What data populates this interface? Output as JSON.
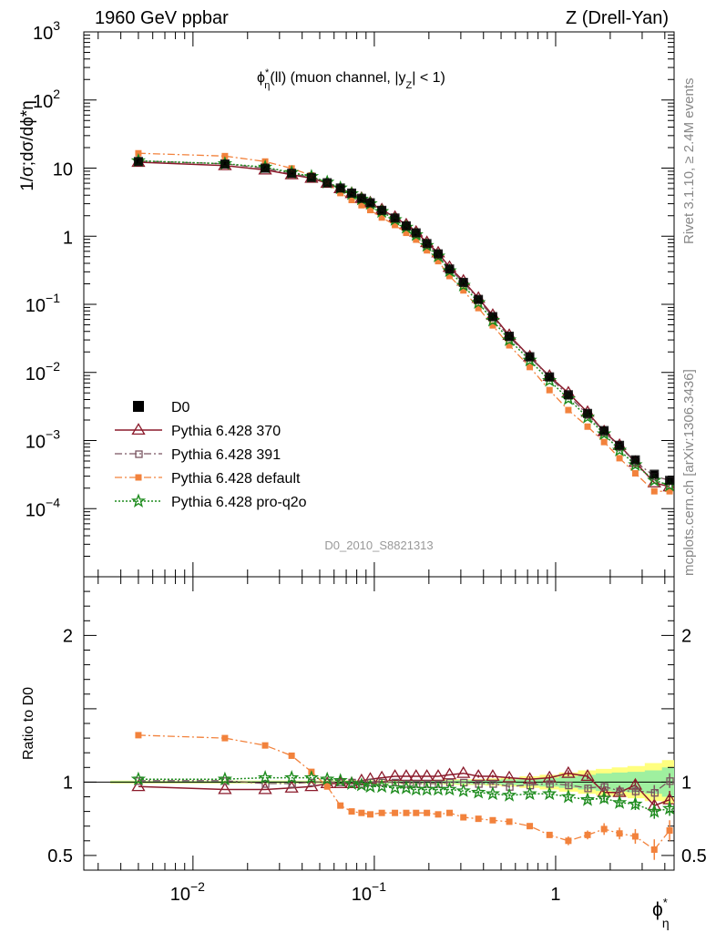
{
  "header": {
    "left": "1960 GeV ppbar",
    "right": "Z (Drell-Yan)",
    "rivet": "Rivet 3.1.10, ≥ 2.4M events",
    "mcplots": "mcplots.cern.ch [arXiv:1306.3436]",
    "analysis_id": "D0_2010_S8821313"
  },
  "colors": {
    "data": "#000000",
    "p370": "#8b1a2b",
    "p391": "#7a5560",
    "pdefault": "#f2823c",
    "pq2o": "#1e8c1e",
    "band_inner": "#9ff09f",
    "band_outer": "#ffff7f"
  },
  "chart_data": [
    {
      "type": "line",
      "title_parts": [
        "ϕ",
        "*",
        "η",
        "(ll) (muon channel, |y",
        "Z",
        "| < 1)"
      ],
      "ylabel": "1/σ;dσ/dϕ*η",
      "x_scale": "log",
      "y_scale": "log",
      "xlim": [
        0.0025,
        4.5
      ],
      "ylim": [
        1e-05,
        1000
      ],
      "y_ticks": [
        {
          "v": 0.0001,
          "mant": "10",
          "exp": "−4"
        },
        {
          "v": 0.001,
          "mant": "10",
          "exp": "−3"
        },
        {
          "v": 0.01,
          "mant": "10",
          "exp": "−2"
        },
        {
          "v": 0.1,
          "mant": "10",
          "exp": "−1"
        },
        {
          "v": 1,
          "mant": "1",
          "exp": ""
        },
        {
          "v": 10,
          "mant": "10",
          "exp": ""
        },
        {
          "v": 100,
          "mant": "10",
          "exp": "2"
        },
        {
          "v": 1000,
          "mant": "10",
          "exp": "3"
        }
      ],
      "legend_position": "lower-left",
      "x": [
        0.005,
        0.015,
        0.025,
        0.035,
        0.045,
        0.055,
        0.065,
        0.075,
        0.085,
        0.095,
        0.11,
        0.13,
        0.15,
        0.17,
        0.195,
        0.225,
        0.26,
        0.31,
        0.375,
        0.45,
        0.555,
        0.72,
        0.925,
        1.175,
        1.5,
        1.85,
        2.25,
        2.75,
        3.5,
        4.25
      ],
      "series": [
        {
          "name": "D0",
          "key": "data",
          "marker": "square",
          "values": [
            12.5,
            11.5,
            10.0,
            8.4,
            7.3,
            6.1,
            5.1,
            4.3,
            3.6,
            3.1,
            2.4,
            1.85,
            1.42,
            1.12,
            0.78,
            0.55,
            0.33,
            0.21,
            0.118,
            0.066,
            0.034,
            0.017,
            0.0086,
            0.0047,
            0.0025,
            0.0014,
            0.00085,
            0.00052,
            0.00032,
            0.00026
          ]
        },
        {
          "name": "Pythia 6.428 370",
          "key": "p370",
          "marker": "triangle-open",
          "values": [
            12.2,
            10.9,
            9.4,
            8.0,
            7.1,
            6.0,
            5.0,
            4.25,
            3.6,
            3.1,
            2.45,
            1.9,
            1.47,
            1.15,
            0.81,
            0.57,
            0.35,
            0.22,
            0.123,
            0.069,
            0.035,
            0.017,
            0.0088,
            0.005,
            0.0026,
            0.00135,
            0.00085,
            0.00048,
            0.00024,
            0.00021
          ]
        },
        {
          "name": "Pythia 6.428 391",
          "key": "p391",
          "marker": "square-open",
          "values": [
            12.7,
            11.6,
            9.9,
            8.3,
            7.3,
            6.1,
            5.1,
            4.3,
            3.6,
            3.1,
            2.4,
            1.85,
            1.41,
            1.11,
            0.77,
            0.54,
            0.33,
            0.21,
            0.117,
            0.065,
            0.033,
            0.0167,
            0.0085,
            0.0046,
            0.0024,
            0.00135,
            0.0008,
            0.00049,
            0.0003,
            0.00026
          ]
        },
        {
          "name": "Pythia 6.428 default",
          "key": "pdefault",
          "marker": "square",
          "values": [
            16.5,
            15.0,
            12.5,
            9.9,
            7.8,
            5.9,
            4.3,
            3.4,
            2.85,
            2.42,
            1.88,
            1.46,
            1.12,
            0.89,
            0.62,
            0.43,
            0.26,
            0.16,
            0.088,
            0.049,
            0.025,
            0.012,
            0.0055,
            0.0028,
            0.0016,
            0.00095,
            0.00055,
            0.00033,
            0.00018,
            0.00018
          ]
        },
        {
          "name": "Pythia 6.428 pro-q2o",
          "key": "pq2o",
          "marker": "star",
          "values": [
            12.8,
            11.6,
            10.3,
            8.6,
            7.5,
            6.2,
            5.1,
            4.2,
            3.5,
            3.0,
            2.3,
            1.75,
            1.35,
            1.05,
            0.73,
            0.51,
            0.31,
            0.19,
            0.106,
            0.058,
            0.03,
            0.0151,
            0.0076,
            0.0041,
            0.0022,
            0.00125,
            0.00072,
            0.00044,
            0.00026,
            0.00022
          ]
        }
      ]
    },
    {
      "type": "line",
      "ylabel": "Ratio to D0",
      "xlabel_parts": [
        "ϕ",
        "*",
        "η"
      ],
      "x_scale": "log",
      "xlim": [
        0.0025,
        4.5
      ],
      "ylim": [
        0.4,
        2.4
      ],
      "x_ticks": [
        {
          "v": 0.01,
          "mant": "10",
          "exp": "−2"
        },
        {
          "v": 0.1,
          "mant": "10",
          "exp": "−1"
        },
        {
          "v": 1,
          "mant": "1",
          "exp": ""
        }
      ],
      "y_ticks": [
        {
          "v": 0.5,
          "label": "0.5"
        },
        {
          "v": 1,
          "label": "1"
        },
        {
          "v": 2,
          "label": "2"
        }
      ],
      "band_inner": [
        0.006,
        0.006,
        0.006,
        0.006,
        0.006,
        0.006,
        0.006,
        0.008,
        0.008,
        0.008,
        0.008,
        0.008,
        0.009,
        0.009,
        0.01,
        0.012,
        0.012,
        0.013,
        0.015,
        0.016,
        0.02,
        0.025,
        0.03,
        0.04,
        0.05,
        0.06,
        0.065,
        0.07,
        0.08,
        0.1
      ],
      "band_outer": [
        0.01,
        0.01,
        0.01,
        0.01,
        0.01,
        0.01,
        0.01,
        0.012,
        0.012,
        0.012,
        0.012,
        0.012,
        0.014,
        0.014,
        0.015,
        0.016,
        0.018,
        0.02,
        0.02,
        0.025,
        0.03,
        0.04,
        0.05,
        0.065,
        0.08,
        0.09,
        0.1,
        0.11,
        0.13,
        0.15
      ],
      "series": [
        {
          "name": "Pythia 6.428 370",
          "key": "p370",
          "marker": "triangle-open",
          "values": [
            0.97,
            0.95,
            0.95,
            0.96,
            0.97,
            0.99,
            0.99,
            0.99,
            1.01,
            1.02,
            1.03,
            1.04,
            1.04,
            1.04,
            1.04,
            1.04,
            1.05,
            1.06,
            1.04,
            1.04,
            1.03,
            1.02,
            1.03,
            1.06,
            1.04,
            0.93,
            0.93,
            0.98,
            0.84,
            0.88
          ],
          "errors": [
            0,
            0,
            0,
            0,
            0,
            0,
            0,
            0,
            0,
            0,
            0,
            0,
            0,
            0,
            0,
            0,
            0,
            0,
            0.01,
            0.01,
            0.01,
            0.02,
            0.02,
            0.02,
            0.02,
            0.03,
            0.03,
            0.04,
            0.06,
            0.06
          ]
        },
        {
          "name": "Pythia 6.428 391",
          "key": "p391",
          "marker": "square-open",
          "values": [
            1.01,
            1.01,
            0.99,
            0.99,
            1.0,
            1.0,
            1.0,
            1.0,
            0.99,
            1.0,
            1.0,
            1.0,
            0.99,
            0.99,
            0.99,
            0.99,
            1.0,
            1.0,
            0.99,
            0.99,
            0.97,
            0.98,
            0.99,
            0.98,
            0.96,
            0.97,
            0.94,
            0.94,
            0.93,
            1.01
          ],
          "errors": [
            0,
            0,
            0,
            0,
            0,
            0,
            0,
            0,
            0,
            0,
            0,
            0,
            0,
            0,
            0,
            0,
            0,
            0,
            0.01,
            0.01,
            0.01,
            0.01,
            0.02,
            0.02,
            0.02,
            0.03,
            0.03,
            0.04,
            0.05,
            0.05
          ]
        },
        {
          "name": "Pythia 6.428 default",
          "key": "pdefault",
          "marker": "square",
          "values": [
            1.32,
            1.3,
            1.25,
            1.18,
            1.07,
            0.97,
            0.84,
            0.8,
            0.79,
            0.78,
            0.79,
            0.79,
            0.79,
            0.79,
            0.79,
            0.78,
            0.79,
            0.76,
            0.75,
            0.74,
            0.73,
            0.7,
            0.64,
            0.6,
            0.64,
            0.68,
            0.65,
            0.63,
            0.54,
            0.67
          ],
          "errors": [
            0,
            0,
            0,
            0,
            0,
            0,
            0,
            0,
            0,
            0,
            0,
            0,
            0,
            0,
            0,
            0,
            0,
            0,
            0.01,
            0.01,
            0.01,
            0.02,
            0.02,
            0.03,
            0.03,
            0.04,
            0.04,
            0.05,
            0.07,
            0.07
          ]
        },
        {
          "name": "Pythia 6.428 pro-q2o",
          "key": "pq2o",
          "marker": "star",
          "values": [
            1.02,
            1.02,
            1.03,
            1.03,
            1.03,
            1.02,
            1.01,
            0.99,
            0.98,
            0.97,
            0.97,
            0.96,
            0.96,
            0.95,
            0.95,
            0.95,
            0.95,
            0.94,
            0.93,
            0.92,
            0.91,
            0.92,
            0.92,
            0.9,
            0.88,
            0.89,
            0.86,
            0.85,
            0.8,
            0.82
          ],
          "errors": [
            0,
            0,
            0,
            0,
            0,
            0,
            0,
            0,
            0,
            0,
            0,
            0,
            0,
            0,
            0,
            0,
            0,
            0,
            0.01,
            0.01,
            0.01,
            0.01,
            0.02,
            0.02,
            0.02,
            0.03,
            0.03,
            0.04,
            0.05,
            0.05
          ]
        }
      ]
    }
  ]
}
